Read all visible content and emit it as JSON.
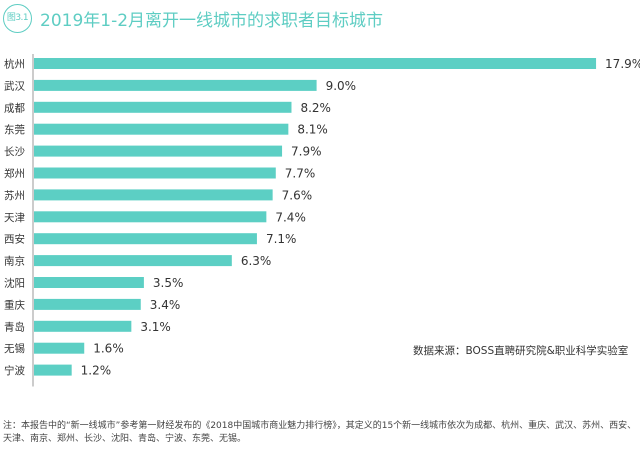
{
  "chart_data": {
    "type": "bar",
    "orientation": "horizontal",
    "badge": "图3.1",
    "title": "2019年1-2月离开一线城市的求职者目标城市",
    "categories": [
      "杭州",
      "武汉",
      "成都",
      "东莞",
      "长沙",
      "郑州",
      "苏州",
      "天津",
      "西安",
      "南京",
      "沈阳",
      "重庆",
      "青岛",
      "无锡",
      "宁波"
    ],
    "values": [
      17.9,
      9.0,
      8.2,
      8.1,
      7.9,
      7.7,
      7.6,
      7.4,
      7.1,
      6.3,
      3.5,
      3.4,
      3.1,
      1.6,
      1.2
    ],
    "value_labels": [
      "17.9%",
      "9.0%",
      "8.2%",
      "8.1%",
      "7.9%",
      "7.7%",
      "7.6%",
      "7.4%",
      "7.1%",
      "6.3%",
      "3.5%",
      "3.4%",
      "3.1%",
      "1.6%",
      "1.2%"
    ],
    "unit": "%",
    "xlim": [
      0,
      18
    ],
    "grid": false,
    "bar_color": "#5ccfc4",
    "source": "数据来源：BOSS直聘研究院&职业科学实验室",
    "note": "注：本报告中的“新一线城市”参考第一财经发布的《2018中国城市商业魅力排行榜》，其定义的15个新一线城市依次为成都、杭州、重庆、武汉、苏州、西安、天津、南京、郑州、长沙、沈阳、青岛、宁波、东莞、无锡。"
  }
}
